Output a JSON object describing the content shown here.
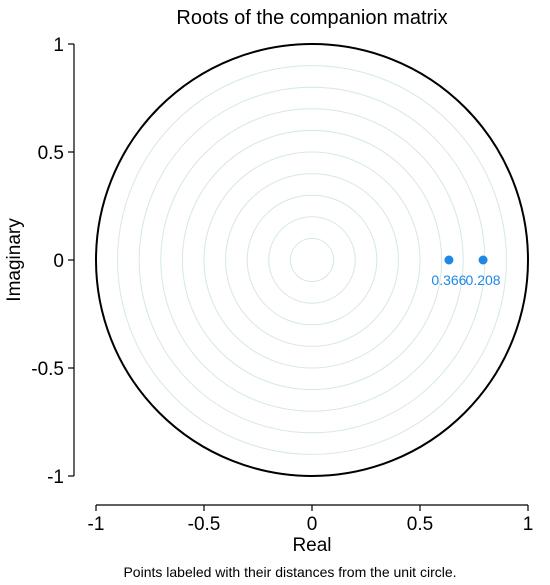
{
  "chart_data": {
    "type": "scatter",
    "title": "Roots of the companion matrix",
    "xlabel": "Real",
    "ylabel": "Imaginary",
    "note": "Points labeled with their distances from the unit circle.",
    "xlim": [
      -1,
      1
    ],
    "ylim": [
      -1,
      1
    ],
    "x_ticks": [
      "-1",
      "-0.5",
      "0",
      "0.5",
      "1"
    ],
    "y_ticks": [
      "1",
      "0.5",
      "0",
      "-0.5",
      "-1"
    ],
    "x_tick_values": [
      -1,
      -0.5,
      0,
      0.5,
      1
    ],
    "y_tick_values": [
      1,
      0.5,
      0,
      -0.5,
      -1
    ],
    "grid": true,
    "grid_circle_radii": [
      0.1,
      0.2,
      0.3,
      0.4,
      0.5,
      0.6,
      0.7,
      0.8,
      0.9
    ],
    "unit_circle_radius": 1,
    "points": [
      {
        "x": 0.634,
        "y": 0,
        "label": "0.366"
      },
      {
        "x": 0.792,
        "y": 0,
        "label": "0.208"
      }
    ],
    "colors": {
      "point": "#1e88e5",
      "label": "#1e88e5",
      "grid": "#d6e7e7",
      "unit_circle": "#000000",
      "axis": "#000000",
      "text": "#000000"
    }
  }
}
